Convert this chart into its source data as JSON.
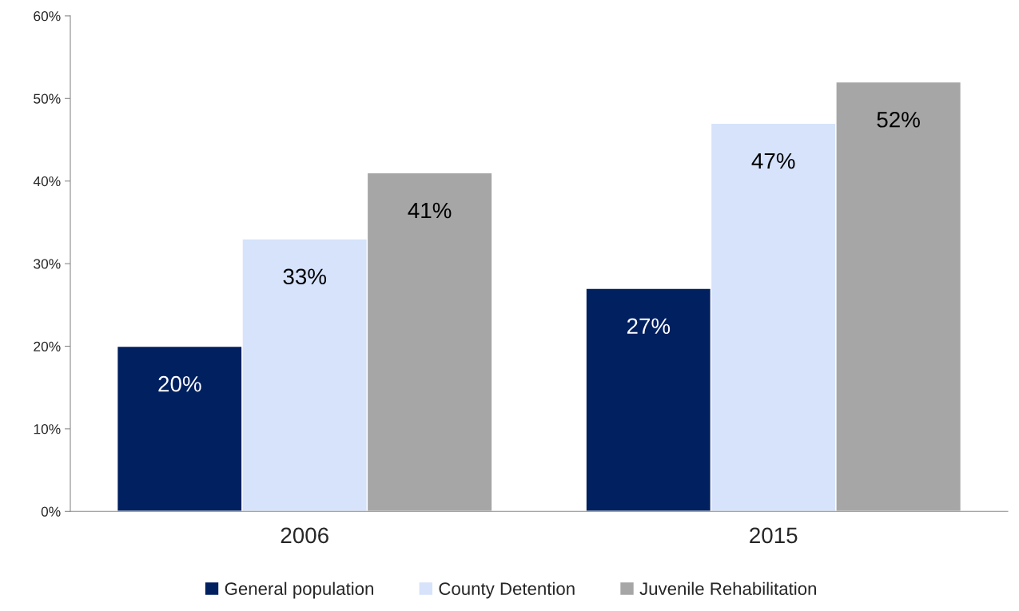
{
  "chart_data": {
    "type": "bar",
    "categories": [
      "2006",
      "2015"
    ],
    "series": [
      {
        "name": "General population",
        "color": "#002060",
        "values": [
          20,
          27
        ],
        "value_labels": [
          "20%",
          "27%"
        ]
      },
      {
        "name": "County Detention",
        "color": "#d6e3fb",
        "values": [
          33,
          47
        ],
        "value_labels": [
          "33%",
          "47%"
        ]
      },
      {
        "name": "Juvenile Rehabilitation",
        "color": "#a6a6a6",
        "values": [
          41,
          52
        ],
        "value_labels": [
          "41%",
          "52%"
        ]
      }
    ],
    "ylim": [
      0,
      60
    ],
    "yticks": [
      {
        "value": 0,
        "label": "0%"
      },
      {
        "value": 10,
        "label": "10%"
      },
      {
        "value": 20,
        "label": "20%"
      },
      {
        "value": 30,
        "label": "30%"
      },
      {
        "value": 40,
        "label": "40%"
      },
      {
        "value": 50,
        "label": "50%"
      },
      {
        "value": 60,
        "label": "60%"
      }
    ],
    "grid": false,
    "legend": "bottom"
  }
}
